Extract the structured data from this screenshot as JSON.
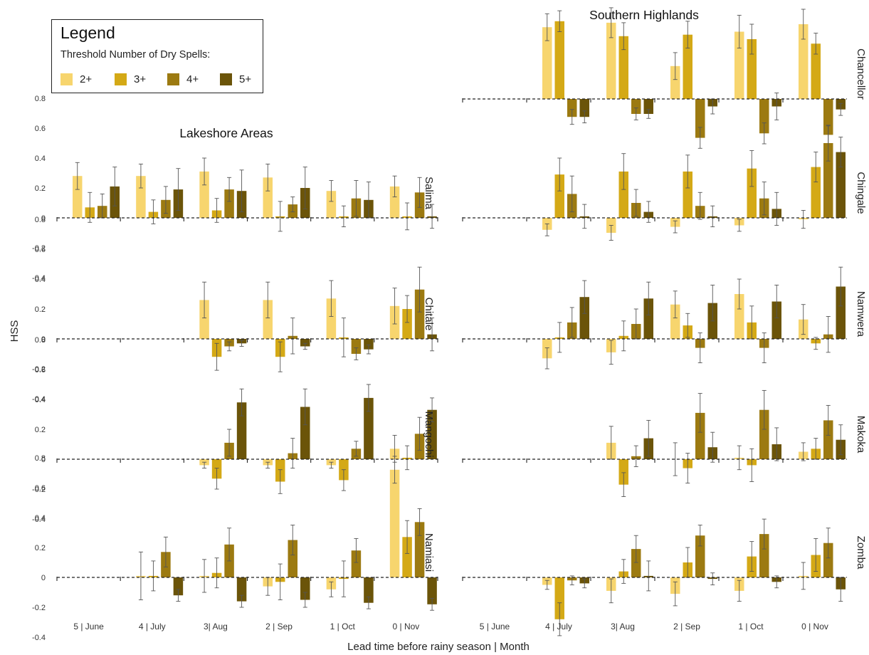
{
  "titles": {
    "left": "Lakeshore Areas",
    "right": "Southern Highlands"
  },
  "axes": {
    "ylabel": "HSS",
    "xlabel": "Lead time before rainy season | Month",
    "yticks": [
      0.8,
      0.6,
      0.4,
      0.2,
      0,
      -0.2,
      -0.4
    ],
    "ytick_labels": [
      "0.8",
      "0.6",
      "0.4",
      "0.2",
      "0",
      "-0.2",
      "-0.4"
    ],
    "xtick_labels": [
      "5 | June",
      "4 | July",
      "3| Aug",
      "2 | Sep",
      "1 | Oct",
      "0 | Nov"
    ]
  },
  "legend": {
    "title": "Legend",
    "subtitle": "Threshold Number of Dry Spells:",
    "items": [
      {
        "label": "2+",
        "color": "#f7d56e"
      },
      {
        "label": "3+",
        "color": "#d4a916"
      },
      {
        "label": "4+",
        "color": "#9c7a11"
      },
      {
        "label": "5+",
        "color": "#6b5409"
      }
    ]
  },
  "chart_data": [
    {
      "type": "bar",
      "region": "Lakeshore Areas",
      "station": "Salima",
      "categories": [
        "5 | June",
        "4 | July",
        "3| Aug",
        "2 | Sep",
        "1 | Oct",
        "0 | Nov"
      ],
      "series": [
        {
          "name": "2+",
          "values": [
            0.28,
            0.28,
            0.31,
            0.27,
            0.18,
            0.21
          ],
          "err": [
            0.09,
            0.08,
            0.09,
            0.09,
            0.07,
            0.07
          ]
        },
        {
          "name": "3+",
          "values": [
            0.07,
            0.04,
            0.05,
            0.01,
            0.01,
            0.01
          ],
          "err": [
            0.1,
            0.08,
            0.08,
            0.1,
            0.07,
            0.09
          ]
        },
        {
          "name": "4+",
          "values": [
            0.08,
            0.12,
            0.19,
            0.09,
            0.13,
            0.17
          ],
          "err": [
            0.08,
            0.09,
            0.08,
            0.05,
            0.12,
            0.1
          ]
        },
        {
          "name": "5+",
          "values": [
            0.21,
            0.19,
            0.18,
            0.2,
            0.12,
            0.01
          ],
          "err": [
            0.13,
            0.14,
            0.14,
            0.14,
            0.12,
            0.08
          ]
        }
      ]
    },
    {
      "type": "bar",
      "region": "Lakeshore Areas",
      "station": "Chitale",
      "categories": [
        "5 | June",
        "4 | July",
        "3| Aug",
        "2 | Sep",
        "1 | Oct",
        "0 | Nov"
      ],
      "series": [
        {
          "name": "2+",
          "values": [
            null,
            null,
            0.26,
            0.26,
            0.27,
            0.22
          ],
          "err": [
            0,
            0,
            0.12,
            0.12,
            0.12,
            0.12
          ]
        },
        {
          "name": "3+",
          "values": [
            null,
            null,
            -0.12,
            -0.12,
            0.01,
            0.2
          ],
          "err": [
            0,
            0,
            0.09,
            0.1,
            0.13,
            0.09
          ]
        },
        {
          "name": "4+",
          "values": [
            null,
            null,
            -0.05,
            0.02,
            -0.1,
            0.33
          ],
          "err": [
            0,
            0,
            0.03,
            0.12,
            0.04,
            0.15
          ]
        },
        {
          "name": "5+",
          "values": [
            null,
            null,
            -0.03,
            -0.05,
            -0.07,
            0.03
          ],
          "err": [
            0,
            0,
            0.02,
            0.02,
            0.03,
            0.11
          ]
        }
      ]
    },
    {
      "type": "bar",
      "region": "Lakeshore Areas",
      "station": "Mangochi",
      "categories": [
        "5 | June",
        "4 | July",
        "3| Aug",
        "2 | Sep",
        "1 | Oct",
        "0 | Nov"
      ],
      "series": [
        {
          "name": "2+",
          "values": [
            null,
            null,
            -0.04,
            -0.04,
            -0.04,
            0.07
          ],
          "err": [
            0,
            0,
            0.02,
            0.02,
            0.02,
            0.09
          ]
        },
        {
          "name": "3+",
          "values": [
            null,
            null,
            -0.13,
            -0.15,
            -0.14,
            0.01
          ],
          "err": [
            0,
            0,
            0.07,
            0.08,
            0.07,
            0.08
          ]
        },
        {
          "name": "4+",
          "values": [
            null,
            null,
            0.11,
            0.04,
            0.07,
            0.17
          ],
          "err": [
            0,
            0,
            0.09,
            0.1,
            0.05,
            0.11
          ]
        },
        {
          "name": "5+",
          "values": [
            null,
            null,
            0.38,
            0.35,
            0.41,
            0.33
          ],
          "err": [
            0,
            0,
            0.09,
            0.12,
            0.09,
            0.08
          ]
        }
      ]
    },
    {
      "type": "bar",
      "region": "Lakeshore Areas",
      "station": "Namiasi",
      "categories": [
        "5 | June",
        "4 | July",
        "3| Aug",
        "2 | Sep",
        "1 | Oct",
        "0 | Nov"
      ],
      "series": [
        {
          "name": "2+",
          "values": [
            null,
            0.01,
            0.01,
            -0.06,
            -0.08,
            0.72
          ],
          "err": [
            0,
            0.16,
            0.11,
            0.06,
            0.05,
            0.09
          ]
        },
        {
          "name": "3+",
          "values": [
            null,
            0.01,
            0.03,
            -0.03,
            -0.01,
            0.27
          ],
          "err": [
            0,
            0.1,
            0.1,
            0.12,
            0.12,
            0.11
          ]
        },
        {
          "name": "4+",
          "values": [
            null,
            0.17,
            0.22,
            0.25,
            0.18,
            0.37
          ],
          "err": [
            0,
            0.1,
            0.11,
            0.1,
            0.08,
            0.09
          ]
        },
        {
          "name": "5+",
          "values": [
            null,
            -0.12,
            -0.16,
            -0.15,
            -0.17,
            -0.18
          ],
          "err": [
            0,
            0.04,
            0.04,
            0.05,
            0.04,
            0.04
          ]
        }
      ]
    },
    {
      "type": "bar",
      "region": "Southern Highlands",
      "station": "Chancellor",
      "categories": [
        "5 | June",
        "4 | July",
        "3| Aug",
        "2 | Sep",
        "1 | Oct",
        "0 | Nov"
      ],
      "series": [
        {
          "name": "2+",
          "values": [
            null,
            0.48,
            0.51,
            0.22,
            0.45,
            0.5
          ],
          "err": [
            0,
            0.09,
            0.1,
            0.09,
            0.11,
            0.1
          ]
        },
        {
          "name": "3+",
          "values": [
            null,
            0.52,
            0.42,
            0.43,
            0.4,
            0.37
          ],
          "err": [
            0,
            0.07,
            0.09,
            0.09,
            0.1,
            0.07
          ]
        },
        {
          "name": "4+",
          "values": [
            null,
            -0.12,
            -0.1,
            -0.26,
            -0.23,
            -0.24
          ],
          "err": [
            0,
            0.05,
            0.04,
            0.07,
            0.07,
            0.06
          ]
        },
        {
          "name": "5+",
          "values": [
            null,
            -0.12,
            -0.1,
            -0.05,
            -0.05,
            -0.07
          ],
          "err": [
            0,
            0.04,
            0.03,
            0.05,
            0.09,
            0.04
          ]
        }
      ]
    },
    {
      "type": "bar",
      "region": "Southern Highlands",
      "station": "Chingale",
      "categories": [
        "5 | June",
        "4 | July",
        "3| Aug",
        "2 | Sep",
        "1 | Oct",
        "0 | Nov"
      ],
      "series": [
        {
          "name": "2+",
          "values": [
            null,
            -0.08,
            -0.1,
            -0.06,
            -0.05,
            -0.01
          ],
          "err": [
            0,
            0.04,
            0.05,
            0.04,
            0.04,
            0.06
          ]
        },
        {
          "name": "3+",
          "values": [
            null,
            0.29,
            0.31,
            0.31,
            0.33,
            0.34
          ],
          "err": [
            0,
            0.11,
            0.12,
            0.11,
            0.12,
            0.1
          ]
        },
        {
          "name": "4+",
          "values": [
            null,
            0.16,
            0.1,
            0.08,
            0.13,
            0.5
          ],
          "err": [
            0,
            0.12,
            0.09,
            0.09,
            0.11,
            0.12
          ]
        },
        {
          "name": "5+",
          "values": [
            null,
            0.01,
            0.04,
            0.01,
            0.06,
            0.44
          ],
          "err": [
            0,
            0.08,
            0.07,
            0.07,
            0.11,
            0.1
          ]
        }
      ]
    },
    {
      "type": "bar",
      "region": "Southern Highlands",
      "station": "Namwera",
      "categories": [
        "5 | June",
        "4 | July",
        "3| Aug",
        "2 | Sep",
        "1 | Oct",
        "0 | Nov"
      ],
      "series": [
        {
          "name": "2+",
          "values": [
            null,
            -0.13,
            -0.09,
            0.23,
            0.3,
            0.13
          ],
          "err": [
            0,
            0.07,
            0.08,
            0.09,
            0.1,
            0.1
          ]
        },
        {
          "name": "3+",
          "values": [
            null,
            0.01,
            0.02,
            0.09,
            0.11,
            -0.03
          ],
          "err": [
            0,
            0.1,
            0.1,
            0.08,
            0.11,
            0.04
          ]
        },
        {
          "name": "4+",
          "values": [
            null,
            0.11,
            0.1,
            -0.06,
            -0.06,
            0.03
          ],
          "err": [
            0,
            0.1,
            0.1,
            0.1,
            0.1,
            0.12
          ]
        },
        {
          "name": "5+",
          "values": [
            null,
            0.28,
            0.27,
            0.24,
            0.25,
            0.35
          ],
          "err": [
            0,
            0.11,
            0.11,
            0.12,
            0.11,
            0.13
          ]
        }
      ]
    },
    {
      "type": "bar",
      "region": "Southern Highlands",
      "station": "Makoka",
      "categories": [
        "5 | June",
        "4 | July",
        "3| Aug",
        "2 | Sep",
        "1 | Oct",
        "0 | Nov"
      ],
      "series": [
        {
          "name": "2+",
          "values": [
            null,
            null,
            0.11,
            0.0,
            0.01,
            0.05
          ],
          "err": [
            0,
            0,
            0.11,
            0.11,
            0.08,
            0.06
          ]
        },
        {
          "name": "3+",
          "values": [
            null,
            null,
            -0.17,
            -0.06,
            -0.04,
            0.07
          ],
          "err": [
            0,
            0,
            0.08,
            0.1,
            0.11,
            0.07
          ]
        },
        {
          "name": "4+",
          "values": [
            null,
            null,
            0.02,
            0.31,
            0.33,
            0.26
          ],
          "err": [
            0,
            0,
            0.07,
            0.13,
            0.13,
            0.1
          ]
        },
        {
          "name": "5+",
          "values": [
            null,
            null,
            0.14,
            0.08,
            0.1,
            0.13
          ],
          "err": [
            0,
            0,
            0.12,
            0.1,
            0.11,
            0.1
          ]
        }
      ]
    },
    {
      "type": "bar",
      "region": "Southern Highlands",
      "station": "Zomba",
      "categories": [
        "5 | June",
        "4 | July",
        "3| Aug",
        "2 | Sep",
        "1 | Oct",
        "0 | Nov"
      ],
      "series": [
        {
          "name": "2+",
          "values": [
            null,
            -0.05,
            -0.09,
            -0.11,
            -0.09,
            0.01
          ],
          "err": [
            0,
            0.03,
            0.08,
            0.08,
            0.07,
            0.09
          ]
        },
        {
          "name": "3+",
          "values": [
            null,
            -0.28,
            0.04,
            0.1,
            0.14,
            0.15
          ],
          "err": [
            0,
            0.11,
            0.08,
            0.1,
            0.1,
            0.11
          ]
        },
        {
          "name": "4+",
          "values": [
            null,
            -0.02,
            0.19,
            0.28,
            0.29,
            0.23
          ],
          "err": [
            0,
            0.03,
            0.09,
            0.07,
            0.1,
            0.1
          ]
        },
        {
          "name": "5+",
          "values": [
            null,
            -0.04,
            0.01,
            -0.01,
            -0.03,
            -0.08
          ],
          "err": [
            0,
            0.03,
            0.1,
            0.04,
            0.04,
            0.08
          ]
        }
      ]
    }
  ]
}
